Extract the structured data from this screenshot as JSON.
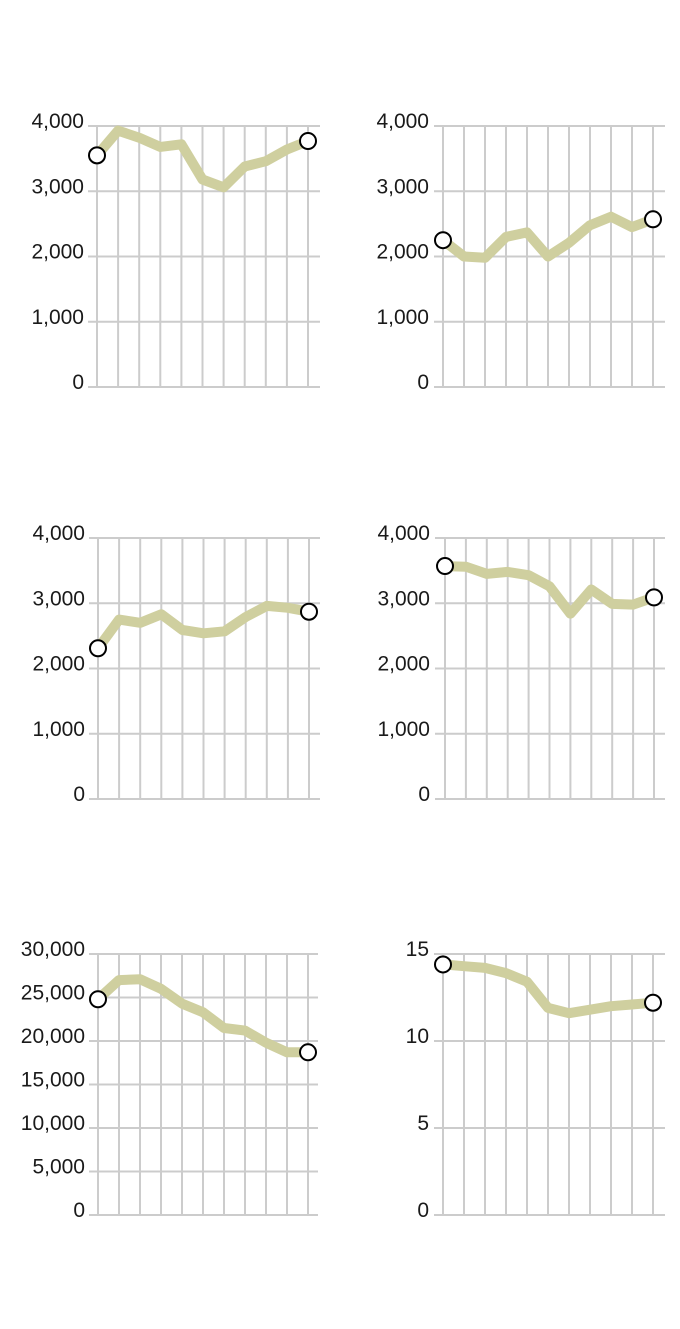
{
  "colors": {
    "line": "#cfcf9f",
    "grid": "#cccccc",
    "marker_fill": "#ffffff",
    "marker_stroke": "#000000",
    "text": "#1a1a1a"
  },
  "chart_data": [
    {
      "type": "line",
      "ylim": [
        0,
        4000
      ],
      "yticks": [
        0,
        1000,
        2000,
        3000,
        4000
      ],
      "ytick_labels": [
        "0",
        "1,000",
        "2,000",
        "3,000",
        "4,000"
      ],
      "x": [
        1,
        2,
        3,
        4,
        5,
        6,
        7,
        8,
        9,
        10,
        11
      ],
      "values": [
        3550,
        3930,
        3820,
        3680,
        3720,
        3180,
        3060,
        3380,
        3460,
        3640,
        3770
      ],
      "grid": true,
      "endpoint_markers": true
    },
    {
      "type": "line",
      "ylim": [
        0,
        4000
      ],
      "yticks": [
        0,
        1000,
        2000,
        3000,
        4000
      ],
      "ytick_labels": [
        "0",
        "1,000",
        "2,000",
        "3,000",
        "4,000"
      ],
      "x": [
        1,
        2,
        3,
        4,
        5,
        6,
        7,
        8,
        9,
        10,
        11
      ],
      "values": [
        2250,
        2000,
        1980,
        2300,
        2370,
        2000,
        2210,
        2480,
        2610,
        2450,
        2570
      ],
      "grid": true,
      "endpoint_markers": true
    },
    {
      "type": "line",
      "ylim": [
        0,
        4000
      ],
      "yticks": [
        0,
        1000,
        2000,
        3000,
        4000
      ],
      "ytick_labels": [
        "0",
        "1,000",
        "2,000",
        "3,000",
        "4,000"
      ],
      "x": [
        1,
        2,
        3,
        4,
        5,
        6,
        7,
        8,
        9,
        10,
        11
      ],
      "values": [
        2310,
        2750,
        2700,
        2830,
        2590,
        2540,
        2570,
        2790,
        2960,
        2930,
        2870
      ],
      "grid": true,
      "endpoint_markers": true
    },
    {
      "type": "line",
      "ylim": [
        0,
        4000
      ],
      "yticks": [
        0,
        1000,
        2000,
        3000,
        4000
      ],
      "ytick_labels": [
        "0",
        "1,000",
        "2,000",
        "3,000",
        "4,000"
      ],
      "x": [
        1,
        2,
        3,
        4,
        5,
        6,
        7,
        8,
        9,
        10,
        11
      ],
      "values": [
        3570,
        3560,
        3450,
        3480,
        3430,
        3260,
        2840,
        3210,
        2990,
        2980,
        3090
      ],
      "grid": true,
      "endpoint_markers": true
    },
    {
      "type": "line",
      "ylim": [
        0,
        30000
      ],
      "yticks": [
        0,
        5000,
        10000,
        15000,
        20000,
        25000,
        30000
      ],
      "ytick_labels": [
        "0",
        "5,000",
        "10,000",
        "15,000",
        "20,000",
        "25,000",
        "30,000"
      ],
      "x": [
        1,
        2,
        3,
        4,
        5,
        6,
        7,
        8,
        9,
        10,
        11
      ],
      "values": [
        24800,
        27000,
        27100,
        26000,
        24300,
        23300,
        21500,
        21200,
        19800,
        18700,
        18700
      ],
      "grid": true,
      "endpoint_markers": true
    },
    {
      "type": "line",
      "ylim": [
        0,
        15
      ],
      "yticks": [
        0,
        5,
        10,
        15
      ],
      "ytick_labels": [
        "0",
        "5",
        "10",
        "15"
      ],
      "x": [
        1,
        2,
        3,
        4,
        5,
        6,
        7,
        8,
        9,
        10,
        11
      ],
      "values": [
        14.4,
        14.3,
        14.2,
        13.9,
        13.4,
        11.9,
        11.6,
        11.8,
        12.0,
        12.1,
        12.2
      ],
      "grid": true,
      "endpoint_markers": true
    }
  ]
}
